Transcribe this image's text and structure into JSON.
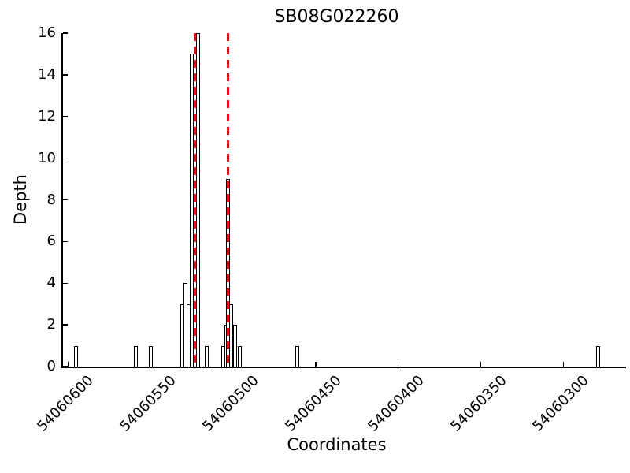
{
  "title": "SB08G022260",
  "axes": {
    "x_label": "Coordinates",
    "y_label": "Depth"
  },
  "chart_data": {
    "type": "bar",
    "title": "SB08G022260",
    "xlabel": "Coordinates",
    "ylabel": "Depth",
    "x_reversed": true,
    "xlim": [
      54060603,
      54060262
    ],
    "ylim": [
      0,
      16
    ],
    "x_tick_values": [
      54060600,
      54060550,
      54060500,
      54060450,
      54060400,
      54060350,
      54060300
    ],
    "x_tick_labels": [
      "54060600",
      "54060550",
      "54060500",
      "54060450",
      "54060400",
      "54060350",
      "54060300"
    ],
    "y_tick_values": [
      0,
      2,
      4,
      6,
      8,
      10,
      12,
      14,
      16
    ],
    "y_tick_labels": [
      "0",
      "2",
      "4",
      "6",
      "8",
      "10",
      "12",
      "14",
      "16"
    ],
    "grid": false,
    "legend": false,
    "bar_fill_color": "#ffffff",
    "bar_edge_color": "#000000",
    "axis_color": "#000000",
    "marker_line_color": "#e8131a",
    "marker_line_style": "dashed",
    "marker_line_positions": [
      54060523,
      54060503
    ],
    "bars": [
      {
        "coordinate": 54060595,
        "depth": 1
      },
      {
        "coordinate": 54060559,
        "depth": 1
      },
      {
        "coordinate": 54060550,
        "depth": 1
      },
      {
        "coordinate": 54060531,
        "depth": 3
      },
      {
        "coordinate": 54060529,
        "depth": 4
      },
      {
        "coordinate": 54060527,
        "depth": 3
      },
      {
        "coordinate": 54060525,
        "depth": 15
      },
      {
        "coordinate": 54060521,
        "depth": 16
      },
      {
        "coordinate": 54060516,
        "depth": 1
      },
      {
        "coordinate": 54060506,
        "depth": 1
      },
      {
        "coordinate": 54060504,
        "depth": 2
      },
      {
        "coordinate": 54060503,
        "depth": 9
      },
      {
        "coordinate": 54060501,
        "depth": 3
      },
      {
        "coordinate": 54060499,
        "depth": 2
      },
      {
        "coordinate": 54060496,
        "depth": 1
      },
      {
        "coordinate": 54060461,
        "depth": 1
      },
      {
        "coordinate": 54060279,
        "depth": 1
      }
    ]
  }
}
